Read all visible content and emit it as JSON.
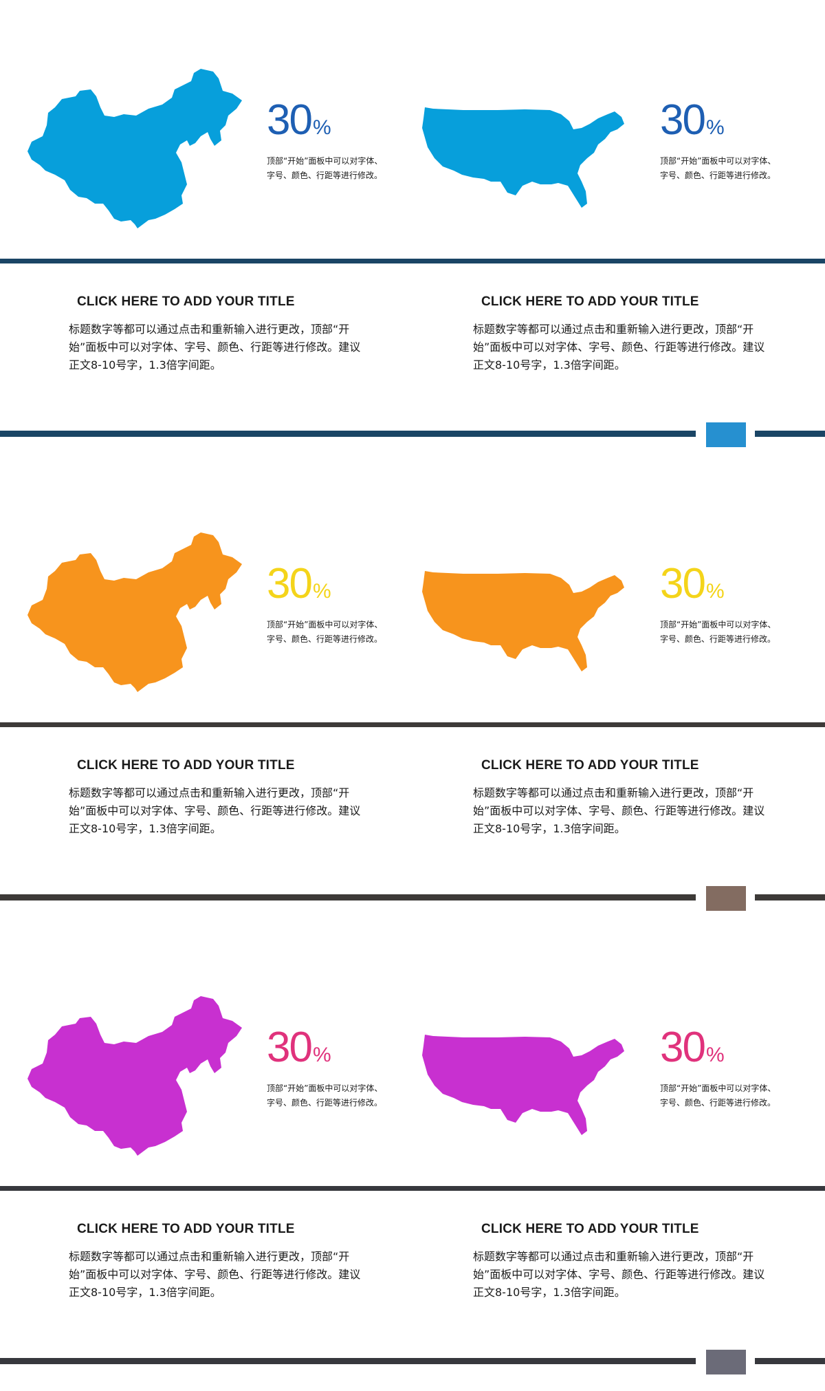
{
  "slides": [
    {
      "map_color": "#079fdb",
      "stat_color": "#1e5fb3",
      "rule_color": "#1a4565",
      "marker_color": "#2690d0",
      "left": {
        "stat_value": "30",
        "stat_unit": "%",
        "stat_desc": "顶部“开始”面板中可以对字体、字号、颜色、行距等进行修改。",
        "title": "CLICK HERE TO ADD YOUR TITLE",
        "body": "标题数字等都可以通过点击和重新输入进行更改，顶部“开始”面板中可以对字体、字号、颜色、行距等进行修改。建议正文8-10号字，1.3倍字间距。"
      },
      "right": {
        "stat_value": "30",
        "stat_unit": "%",
        "stat_desc": "顶部“开始”面板中可以对字体、字号、颜色、行距等进行修改。",
        "title": "CLICK HERE TO ADD YOUR TITLE",
        "body": "标题数字等都可以通过点击和重新输入进行更改，顶部“开始”面板中可以对字体、字号、颜色、行距等进行修改。建议正文8-10号字，1.3倍字间距。"
      }
    },
    {
      "map_color": "#f7941d",
      "stat_color": "#f4d41a",
      "rule_color": "#3d3a38",
      "marker_color": "#836c61",
      "left": {
        "stat_value": "30",
        "stat_unit": "%",
        "stat_desc": "顶部“开始”面板中可以对字体、字号、颜色、行距等进行修改。",
        "title": "CLICK HERE TO ADD YOUR TITLE",
        "body": "标题数字等都可以通过点击和重新输入进行更改，顶部“开始”面板中可以对字体、字号、颜色、行距等进行修改。建议正文8-10号字，1.3倍字间距。"
      },
      "right": {
        "stat_value": "30",
        "stat_unit": "%",
        "stat_desc": "顶部“开始”面板中可以对字体、字号、颜色、行距等进行修改。",
        "title": "CLICK HERE TO ADD YOUR TITLE",
        "body": "标题数字等都可以通过点击和重新输入进行更改，顶部“开始”面板中可以对字体、字号、颜色、行距等进行修改。建议正文8-10号字，1.3倍字间距。"
      }
    },
    {
      "map_color": "#c830d0",
      "stat_color": "#e0327c",
      "rule_color": "#37383d",
      "marker_color": "#6b6b78",
      "left": {
        "stat_value": "30",
        "stat_unit": "%",
        "stat_desc": "顶部“开始”面板中可以对字体、字号、颜色、行距等进行修改。",
        "title": "CLICK HERE TO ADD YOUR TITLE",
        "body": "标题数字等都可以通过点击和重新输入进行更改，顶部“开始”面板中可以对字体、字号、颜色、行距等进行修改。建议正文8-10号字，1.3倍字间距。"
      },
      "right": {
        "stat_value": "30",
        "stat_unit": "%",
        "stat_desc": "顶部“开始”面板中可以对字体、字号、颜色、行距等进行修改。",
        "title": "CLICK HERE TO ADD YOUR TITLE",
        "body": "标题数字等都可以通过点击和重新输入进行更改，顶部“开始”面板中可以对字体、字号、颜色、行距等进行修改。建议正文8-10号字，1.3倍字间距。"
      }
    }
  ]
}
